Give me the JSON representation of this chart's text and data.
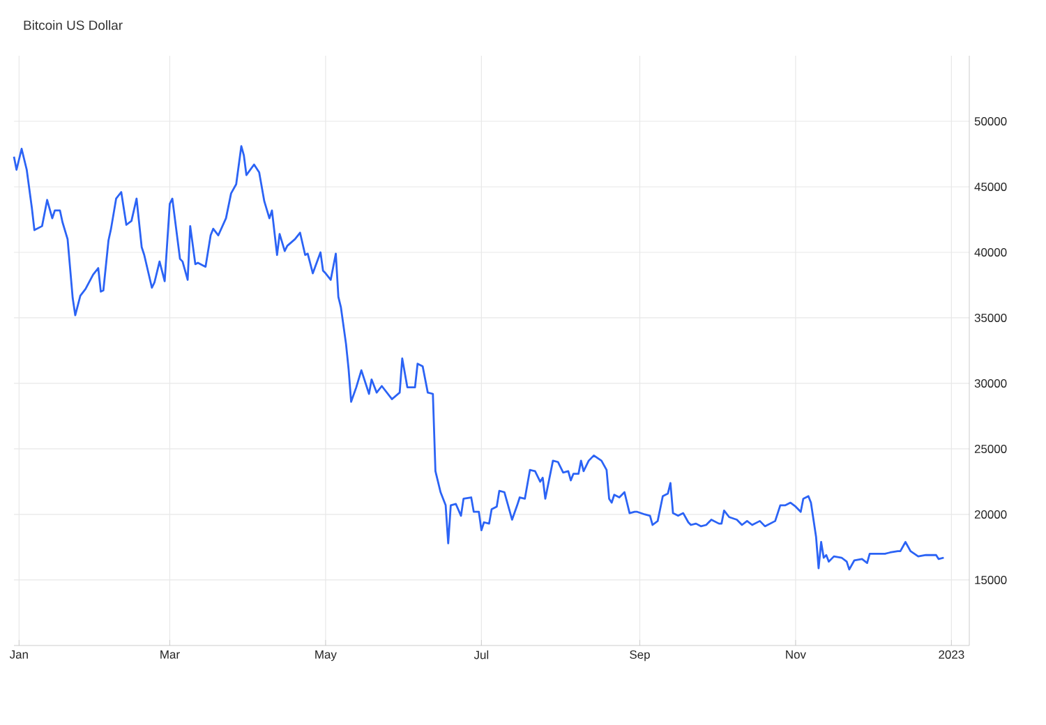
{
  "chart_data": {
    "type": "line",
    "title": "Bitcoin US Dollar",
    "color": "#2b63f5",
    "grid": true,
    "xlim": [
      "2021-12-30",
      "2023-01-08"
    ],
    "ylim": [
      10000,
      55000
    ],
    "xticks": [
      {
        "value": "2022-01-01",
        "label": "Jan"
      },
      {
        "value": "2022-03-01",
        "label": "Mar"
      },
      {
        "value": "2022-05-01",
        "label": "May"
      },
      {
        "value": "2022-07-01",
        "label": "Jul"
      },
      {
        "value": "2022-09-01",
        "label": "Sep"
      },
      {
        "value": "2022-11-01",
        "label": "Nov"
      },
      {
        "value": "2023-01-01",
        "label": "2023"
      }
    ],
    "yticks": [
      15000,
      20000,
      25000,
      30000,
      35000,
      40000,
      45000,
      50000
    ],
    "x": [
      "2021-12-30",
      "2021-12-31",
      "2022-01-02",
      "2022-01-04",
      "2022-01-06",
      "2022-01-07",
      "2022-01-10",
      "2022-01-12",
      "2022-01-14",
      "2022-01-15",
      "2022-01-17",
      "2022-01-18",
      "2022-01-20",
      "2022-01-22",
      "2022-01-23",
      "2022-01-25",
      "2022-01-27",
      "2022-01-30",
      "2022-02-01",
      "2022-02-02",
      "2022-02-03",
      "2022-02-05",
      "2022-02-06",
      "2022-02-08",
      "2022-02-10",
      "2022-02-12",
      "2022-02-14",
      "2022-02-16",
      "2022-02-18",
      "2022-02-19",
      "2022-02-22",
      "2022-02-23",
      "2022-02-25",
      "2022-02-27",
      "2022-03-01",
      "2022-03-02",
      "2022-03-05",
      "2022-03-06",
      "2022-03-08",
      "2022-03-09",
      "2022-03-11",
      "2022-03-12",
      "2022-03-15",
      "2022-03-17",
      "2022-03-18",
      "2022-03-20",
      "2022-03-23",
      "2022-03-25",
      "2022-03-27",
      "2022-03-29",
      "2022-03-30",
      "2022-03-31",
      "2022-04-03",
      "2022-04-05",
      "2022-04-07",
      "2022-04-09",
      "2022-04-10",
      "2022-04-12",
      "2022-04-13",
      "2022-04-15",
      "2022-04-16",
      "2022-04-19",
      "2022-04-21",
      "2022-04-23",
      "2022-04-24",
      "2022-04-26",
      "2022-04-29",
      "2022-04-30",
      "2022-05-01",
      "2022-05-03",
      "2022-05-05",
      "2022-05-06",
      "2022-05-07",
      "2022-05-09",
      "2022-05-10",
      "2022-05-11",
      "2022-05-13",
      "2022-05-15",
      "2022-05-18",
      "2022-05-19",
      "2022-05-21",
      "2022-05-23",
      "2022-05-25",
      "2022-05-27",
      "2022-05-30",
      "2022-05-31",
      "2022-06-02",
      "2022-06-03",
      "2022-06-05",
      "2022-06-06",
      "2022-06-08",
      "2022-06-10",
      "2022-06-12",
      "2022-06-13",
      "2022-06-15",
      "2022-06-17",
      "2022-06-18",
      "2022-06-19",
      "2022-06-21",
      "2022-06-23",
      "2022-06-24",
      "2022-06-27",
      "2022-06-28",
      "2022-06-30",
      "2022-07-01",
      "2022-07-02",
      "2022-07-04",
      "2022-07-05",
      "2022-07-07",
      "2022-07-08",
      "2022-07-10",
      "2022-07-13",
      "2022-07-15",
      "2022-07-16",
      "2022-07-18",
      "2022-07-20",
      "2022-07-22",
      "2022-07-24",
      "2022-07-25",
      "2022-07-26",
      "2022-07-29",
      "2022-07-31",
      "2022-08-02",
      "2022-08-04",
      "2022-08-05",
      "2022-08-06",
      "2022-08-08",
      "2022-08-09",
      "2022-08-10",
      "2022-08-12",
      "2022-08-14",
      "2022-08-17",
      "2022-08-19",
      "2022-08-20",
      "2022-08-21",
      "2022-08-22",
      "2022-08-24",
      "2022-08-26",
      "2022-08-28",
      "2022-08-30",
      "2022-08-31",
      "2022-09-03",
      "2022-09-05",
      "2022-09-06",
      "2022-09-08",
      "2022-09-10",
      "2022-09-12",
      "2022-09-13",
      "2022-09-14",
      "2022-09-16",
      "2022-09-18",
      "2022-09-20",
      "2022-09-21",
      "2022-09-23",
      "2022-09-25",
      "2022-09-27",
      "2022-09-29",
      "2022-10-02",
      "2022-10-03",
      "2022-10-04",
      "2022-10-06",
      "2022-10-09",
      "2022-10-11",
      "2022-10-13",
      "2022-10-15",
      "2022-10-18",
      "2022-10-20",
      "2022-10-24",
      "2022-10-26",
      "2022-10-28",
      "2022-10-30",
      "2022-11-01",
      "2022-11-03",
      "2022-11-04",
      "2022-11-06",
      "2022-11-07",
      "2022-11-09",
      "2022-11-10",
      "2022-11-11",
      "2022-11-12",
      "2022-11-13",
      "2022-11-14",
      "2022-11-16",
      "2022-11-19",
      "2022-11-21",
      "2022-11-22",
      "2022-11-24",
      "2022-11-27",
      "2022-11-29",
      "2022-11-30",
      "2022-12-03",
      "2022-12-06",
      "2022-12-08",
      "2022-12-11",
      "2022-12-12",
      "2022-12-14",
      "2022-12-16",
      "2022-12-19",
      "2022-12-22",
      "2022-12-26",
      "2022-12-27",
      "2022-12-29"
    ],
    "values": [
      47300,
      46300,
      47900,
      46300,
      43400,
      41700,
      42000,
      44000,
      42600,
      43200,
      43200,
      42300,
      41000,
      36500,
      35200,
      36700,
      37200,
      38300,
      38800,
      37000,
      37100,
      40900,
      41800,
      44100,
      44600,
      42100,
      42400,
      44100,
      40400,
      39800,
      37300,
      37700,
      39300,
      37800,
      43700,
      44100,
      39500,
      39300,
      37900,
      42000,
      39100,
      39200,
      38900,
      41300,
      41800,
      41300,
      42600,
      44500,
      45200,
      48100,
      47400,
      45900,
      46700,
      46100,
      43900,
      42600,
      43200,
      39800,
      41400,
      40100,
      40500,
      41000,
      41500,
      39800,
      39900,
      38400,
      40000,
      38600,
      38400,
      37900,
      39900,
      36600,
      35800,
      33000,
      31100,
      28600,
      29700,
      31000,
      29200,
      30300,
      29300,
      29800,
      29300,
      28800,
      29300,
      31900,
      29700,
      29700,
      29700,
      31500,
      31300,
      29300,
      29200,
      23300,
      21700,
      20700,
      17800,
      20700,
      20800,
      19900,
      21200,
      21300,
      20200,
      20200,
      18800,
      19400,
      19300,
      20400,
      20600,
      21800,
      21700,
      19600,
      20700,
      21300,
      21200,
      23400,
      23300,
      22500,
      22800,
      21200,
      24100,
      24000,
      23200,
      23300,
      22600,
      23100,
      23100,
      24100,
      23300,
      24100,
      24500,
      24100,
      23400,
      21200,
      20900,
      21500,
      21300,
      21700,
      20100,
      20200,
      20200,
      20000,
      19900,
      19200,
      19500,
      21400,
      21600,
      22400,
      20100,
      19900,
      20100,
      19400,
      19200,
      19300,
      19100,
      19200,
      19600,
      19300,
      19300,
      20300,
      19800,
      19600,
      19200,
      19500,
      19200,
      19500,
      19100,
      19500,
      20700,
      20700,
      20900,
      20600,
      20200,
      21200,
      21400,
      20900,
      18300,
      15900,
      17900,
      16700,
      16900,
      16400,
      16800,
      16700,
      16400,
      15800,
      16500,
      16600,
      16300,
      17000,
      17000,
      17000,
      17100,
      17200,
      17200,
      17900,
      17200,
      16800,
      16900,
      16900,
      16600,
      16700
    ]
  }
}
